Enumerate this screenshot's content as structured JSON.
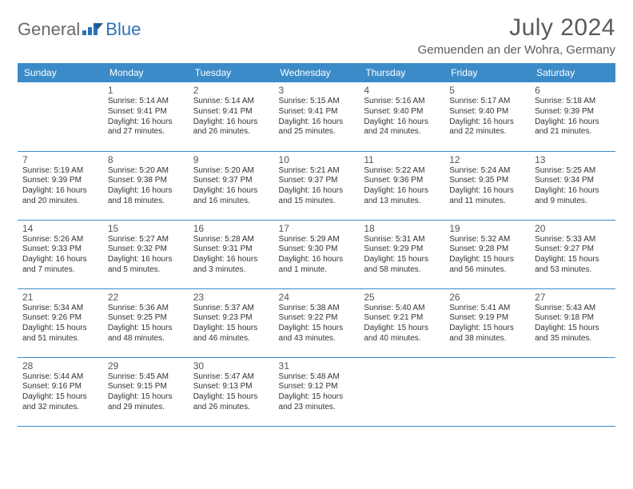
{
  "brand": {
    "word1": "General",
    "word2": "Blue"
  },
  "title": "July 2024",
  "location": "Gemuenden an der Wohra, Germany",
  "colors": {
    "header_bg": "#3b8bc9",
    "header_text": "#ffffff",
    "row_border": "#3b8bc9",
    "logo_gray": "#6a6a6a",
    "logo_blue": "#2a73b8",
    "title_color": "#5a5a5a",
    "body_text": "#333333",
    "page_bg": "#ffffff"
  },
  "day_headers": [
    "Sunday",
    "Monday",
    "Tuesday",
    "Wednesday",
    "Thursday",
    "Friday",
    "Saturday"
  ],
  "fonts": {
    "month_title_pt": 30,
    "location_pt": 15,
    "day_header_pt": 12,
    "day_number_pt": 12,
    "cell_body_pt": 10
  },
  "weeks": [
    [
      {
        "num": "",
        "lines": []
      },
      {
        "num": "1",
        "lines": [
          "Sunrise: 5:14 AM",
          "Sunset: 9:41 PM",
          "Daylight: 16 hours",
          "and 27 minutes."
        ]
      },
      {
        "num": "2",
        "lines": [
          "Sunrise: 5:14 AM",
          "Sunset: 9:41 PM",
          "Daylight: 16 hours",
          "and 26 minutes."
        ]
      },
      {
        "num": "3",
        "lines": [
          "Sunrise: 5:15 AM",
          "Sunset: 9:41 PM",
          "Daylight: 16 hours",
          "and 25 minutes."
        ]
      },
      {
        "num": "4",
        "lines": [
          "Sunrise: 5:16 AM",
          "Sunset: 9:40 PM",
          "Daylight: 16 hours",
          "and 24 minutes."
        ]
      },
      {
        "num": "5",
        "lines": [
          "Sunrise: 5:17 AM",
          "Sunset: 9:40 PM",
          "Daylight: 16 hours",
          "and 22 minutes."
        ]
      },
      {
        "num": "6",
        "lines": [
          "Sunrise: 5:18 AM",
          "Sunset: 9:39 PM",
          "Daylight: 16 hours",
          "and 21 minutes."
        ]
      }
    ],
    [
      {
        "num": "7",
        "lines": [
          "Sunrise: 5:19 AM",
          "Sunset: 9:39 PM",
          "Daylight: 16 hours",
          "and 20 minutes."
        ]
      },
      {
        "num": "8",
        "lines": [
          "Sunrise: 5:20 AM",
          "Sunset: 9:38 PM",
          "Daylight: 16 hours",
          "and 18 minutes."
        ]
      },
      {
        "num": "9",
        "lines": [
          "Sunrise: 5:20 AM",
          "Sunset: 9:37 PM",
          "Daylight: 16 hours",
          "and 16 minutes."
        ]
      },
      {
        "num": "10",
        "lines": [
          "Sunrise: 5:21 AM",
          "Sunset: 9:37 PM",
          "Daylight: 16 hours",
          "and 15 minutes."
        ]
      },
      {
        "num": "11",
        "lines": [
          "Sunrise: 5:22 AM",
          "Sunset: 9:36 PM",
          "Daylight: 16 hours",
          "and 13 minutes."
        ]
      },
      {
        "num": "12",
        "lines": [
          "Sunrise: 5:24 AM",
          "Sunset: 9:35 PM",
          "Daylight: 16 hours",
          "and 11 minutes."
        ]
      },
      {
        "num": "13",
        "lines": [
          "Sunrise: 5:25 AM",
          "Sunset: 9:34 PM",
          "Daylight: 16 hours",
          "and 9 minutes."
        ]
      }
    ],
    [
      {
        "num": "14",
        "lines": [
          "Sunrise: 5:26 AM",
          "Sunset: 9:33 PM",
          "Daylight: 16 hours",
          "and 7 minutes."
        ]
      },
      {
        "num": "15",
        "lines": [
          "Sunrise: 5:27 AM",
          "Sunset: 9:32 PM",
          "Daylight: 16 hours",
          "and 5 minutes."
        ]
      },
      {
        "num": "16",
        "lines": [
          "Sunrise: 5:28 AM",
          "Sunset: 9:31 PM",
          "Daylight: 16 hours",
          "and 3 minutes."
        ]
      },
      {
        "num": "17",
        "lines": [
          "Sunrise: 5:29 AM",
          "Sunset: 9:30 PM",
          "Daylight: 16 hours",
          "and 1 minute."
        ]
      },
      {
        "num": "18",
        "lines": [
          "Sunrise: 5:31 AM",
          "Sunset: 9:29 PM",
          "Daylight: 15 hours",
          "and 58 minutes."
        ]
      },
      {
        "num": "19",
        "lines": [
          "Sunrise: 5:32 AM",
          "Sunset: 9:28 PM",
          "Daylight: 15 hours",
          "and 56 minutes."
        ]
      },
      {
        "num": "20",
        "lines": [
          "Sunrise: 5:33 AM",
          "Sunset: 9:27 PM",
          "Daylight: 15 hours",
          "and 53 minutes."
        ]
      }
    ],
    [
      {
        "num": "21",
        "lines": [
          "Sunrise: 5:34 AM",
          "Sunset: 9:26 PM",
          "Daylight: 15 hours",
          "and 51 minutes."
        ]
      },
      {
        "num": "22",
        "lines": [
          "Sunrise: 5:36 AM",
          "Sunset: 9:25 PM",
          "Daylight: 15 hours",
          "and 48 minutes."
        ]
      },
      {
        "num": "23",
        "lines": [
          "Sunrise: 5:37 AM",
          "Sunset: 9:23 PM",
          "Daylight: 15 hours",
          "and 46 minutes."
        ]
      },
      {
        "num": "24",
        "lines": [
          "Sunrise: 5:38 AM",
          "Sunset: 9:22 PM",
          "Daylight: 15 hours",
          "and 43 minutes."
        ]
      },
      {
        "num": "25",
        "lines": [
          "Sunrise: 5:40 AM",
          "Sunset: 9:21 PM",
          "Daylight: 15 hours",
          "and 40 minutes."
        ]
      },
      {
        "num": "26",
        "lines": [
          "Sunrise: 5:41 AM",
          "Sunset: 9:19 PM",
          "Daylight: 15 hours",
          "and 38 minutes."
        ]
      },
      {
        "num": "27",
        "lines": [
          "Sunrise: 5:43 AM",
          "Sunset: 9:18 PM",
          "Daylight: 15 hours",
          "and 35 minutes."
        ]
      }
    ],
    [
      {
        "num": "28",
        "lines": [
          "Sunrise: 5:44 AM",
          "Sunset: 9:16 PM",
          "Daylight: 15 hours",
          "and 32 minutes."
        ]
      },
      {
        "num": "29",
        "lines": [
          "Sunrise: 5:45 AM",
          "Sunset: 9:15 PM",
          "Daylight: 15 hours",
          "and 29 minutes."
        ]
      },
      {
        "num": "30",
        "lines": [
          "Sunrise: 5:47 AM",
          "Sunset: 9:13 PM",
          "Daylight: 15 hours",
          "and 26 minutes."
        ]
      },
      {
        "num": "31",
        "lines": [
          "Sunrise: 5:48 AM",
          "Sunset: 9:12 PM",
          "Daylight: 15 hours",
          "and 23 minutes."
        ]
      },
      {
        "num": "",
        "lines": []
      },
      {
        "num": "",
        "lines": []
      },
      {
        "num": "",
        "lines": []
      }
    ]
  ]
}
